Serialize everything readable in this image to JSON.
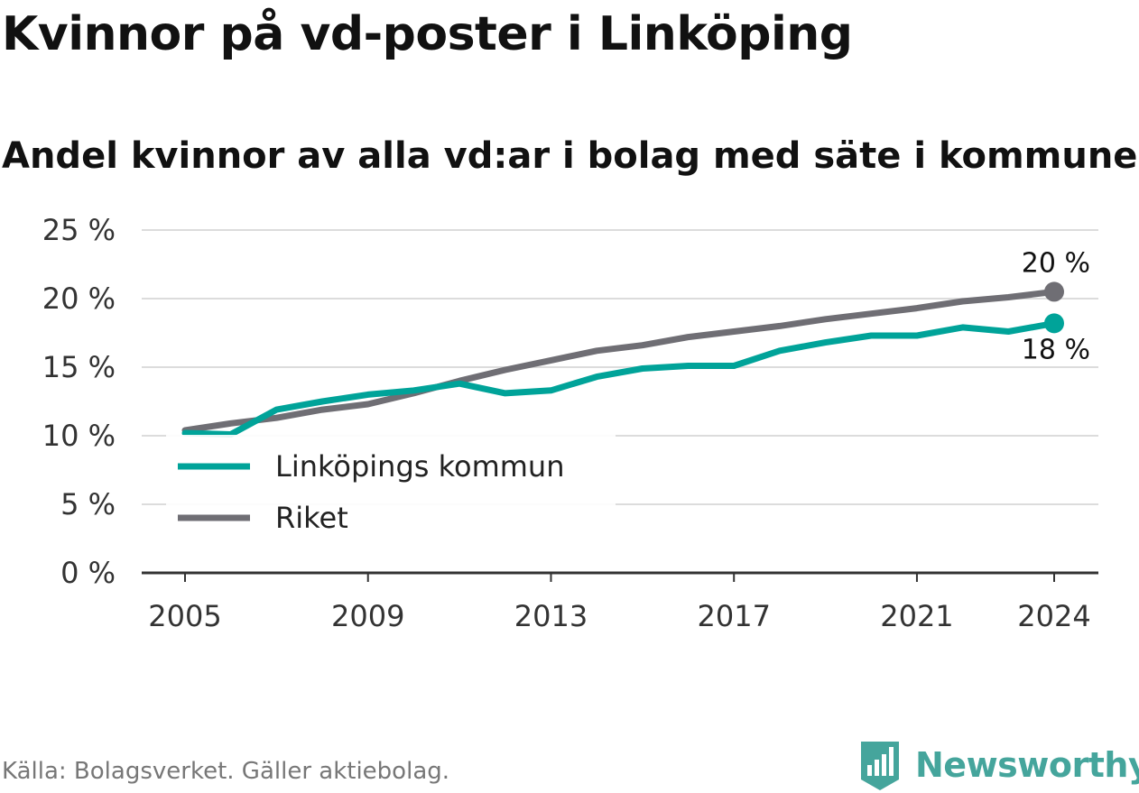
{
  "title": "Kvinnor på vd-poster i Linköping",
  "subtitle": "Andel kvinnor av alla vd:ar i bolag med säte i kommunen",
  "source": "Källa: Bolagsverket. Gäller aktiebolag.",
  "brand": {
    "name": "Newsworthy",
    "color": "#45a59c"
  },
  "chart_data": {
    "type": "line",
    "x": [
      2005,
      2006,
      2007,
      2008,
      2009,
      2010,
      2011,
      2012,
      2013,
      2014,
      2015,
      2016,
      2017,
      2018,
      2019,
      2020,
      2021,
      2022,
      2023,
      2024
    ],
    "series": [
      {
        "name": "Linköpings kommun",
        "color": "#00a399",
        "values": [
          10.2,
          10.1,
          11.9,
          12.5,
          13.0,
          13.3,
          13.8,
          13.1,
          13.3,
          14.3,
          14.9,
          15.1,
          15.1,
          16.2,
          16.8,
          17.3,
          17.3,
          17.9,
          17.6,
          18.2
        ],
        "end_label": "18 %"
      },
      {
        "name": "Riket",
        "color": "#6f6e74",
        "values": [
          10.4,
          10.9,
          11.3,
          11.9,
          12.3,
          13.1,
          14.0,
          14.8,
          15.5,
          16.2,
          16.6,
          17.2,
          17.6,
          18.0,
          18.5,
          18.9,
          19.3,
          19.8,
          20.1,
          20.5
        ],
        "end_label": "20 %"
      }
    ],
    "x_ticks": [
      2005,
      2009,
      2013,
      2017,
      2021,
      2024
    ],
    "x_tick_labels": [
      "2005",
      "2009",
      "2013",
      "2017",
      "2021",
      "2024"
    ],
    "y_ticks": [
      0,
      5,
      10,
      15,
      20,
      25
    ],
    "y_tick_labels": [
      "0 %",
      "5 %",
      "10 %",
      "15 %",
      "20 %",
      "25 %"
    ],
    "xlim": [
      2005,
      2024
    ],
    "ylim": [
      0,
      25
    ],
    "grid": "horizontal",
    "legend_position": "bottom-left"
  }
}
